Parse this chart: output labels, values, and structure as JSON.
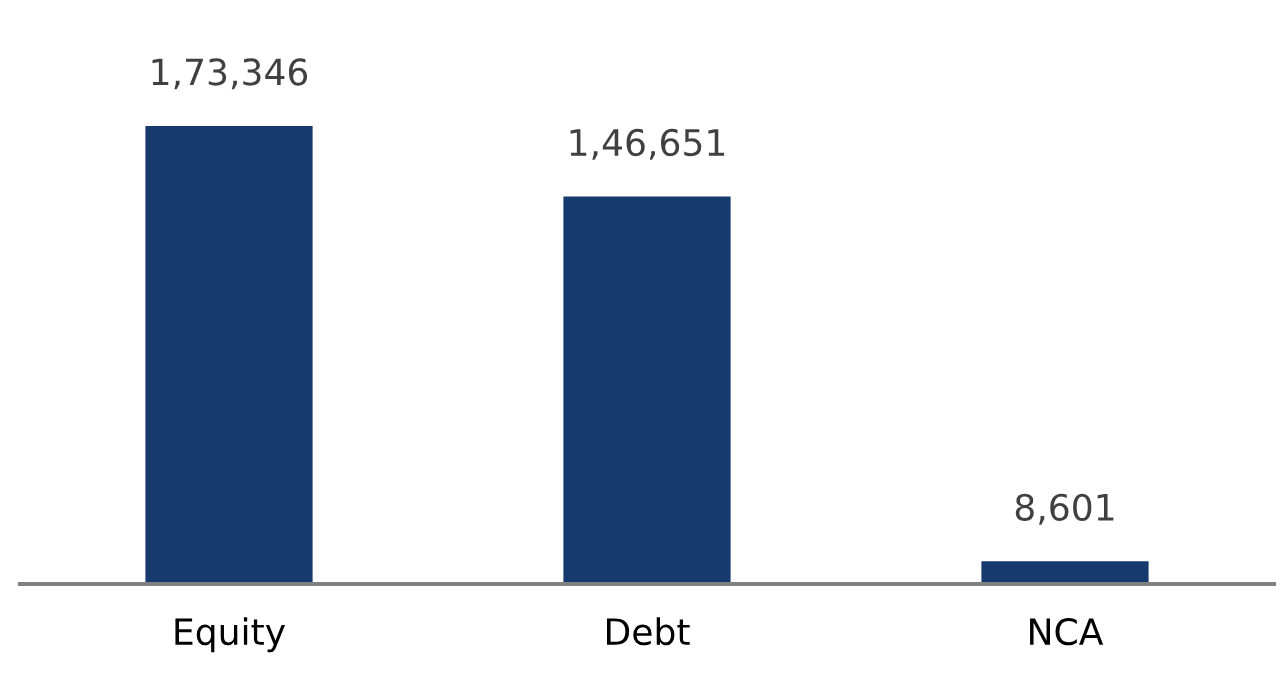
{
  "chart_data": {
    "type": "bar",
    "categories": [
      "Equity",
      "Debt",
      "NCA"
    ],
    "values": [
      173346,
      146651,
      8601
    ],
    "value_labels": [
      "1,73,346",
      "1,46,651",
      "8,601"
    ],
    "color": "#173a6e",
    "grid": false,
    "legend": false
  }
}
